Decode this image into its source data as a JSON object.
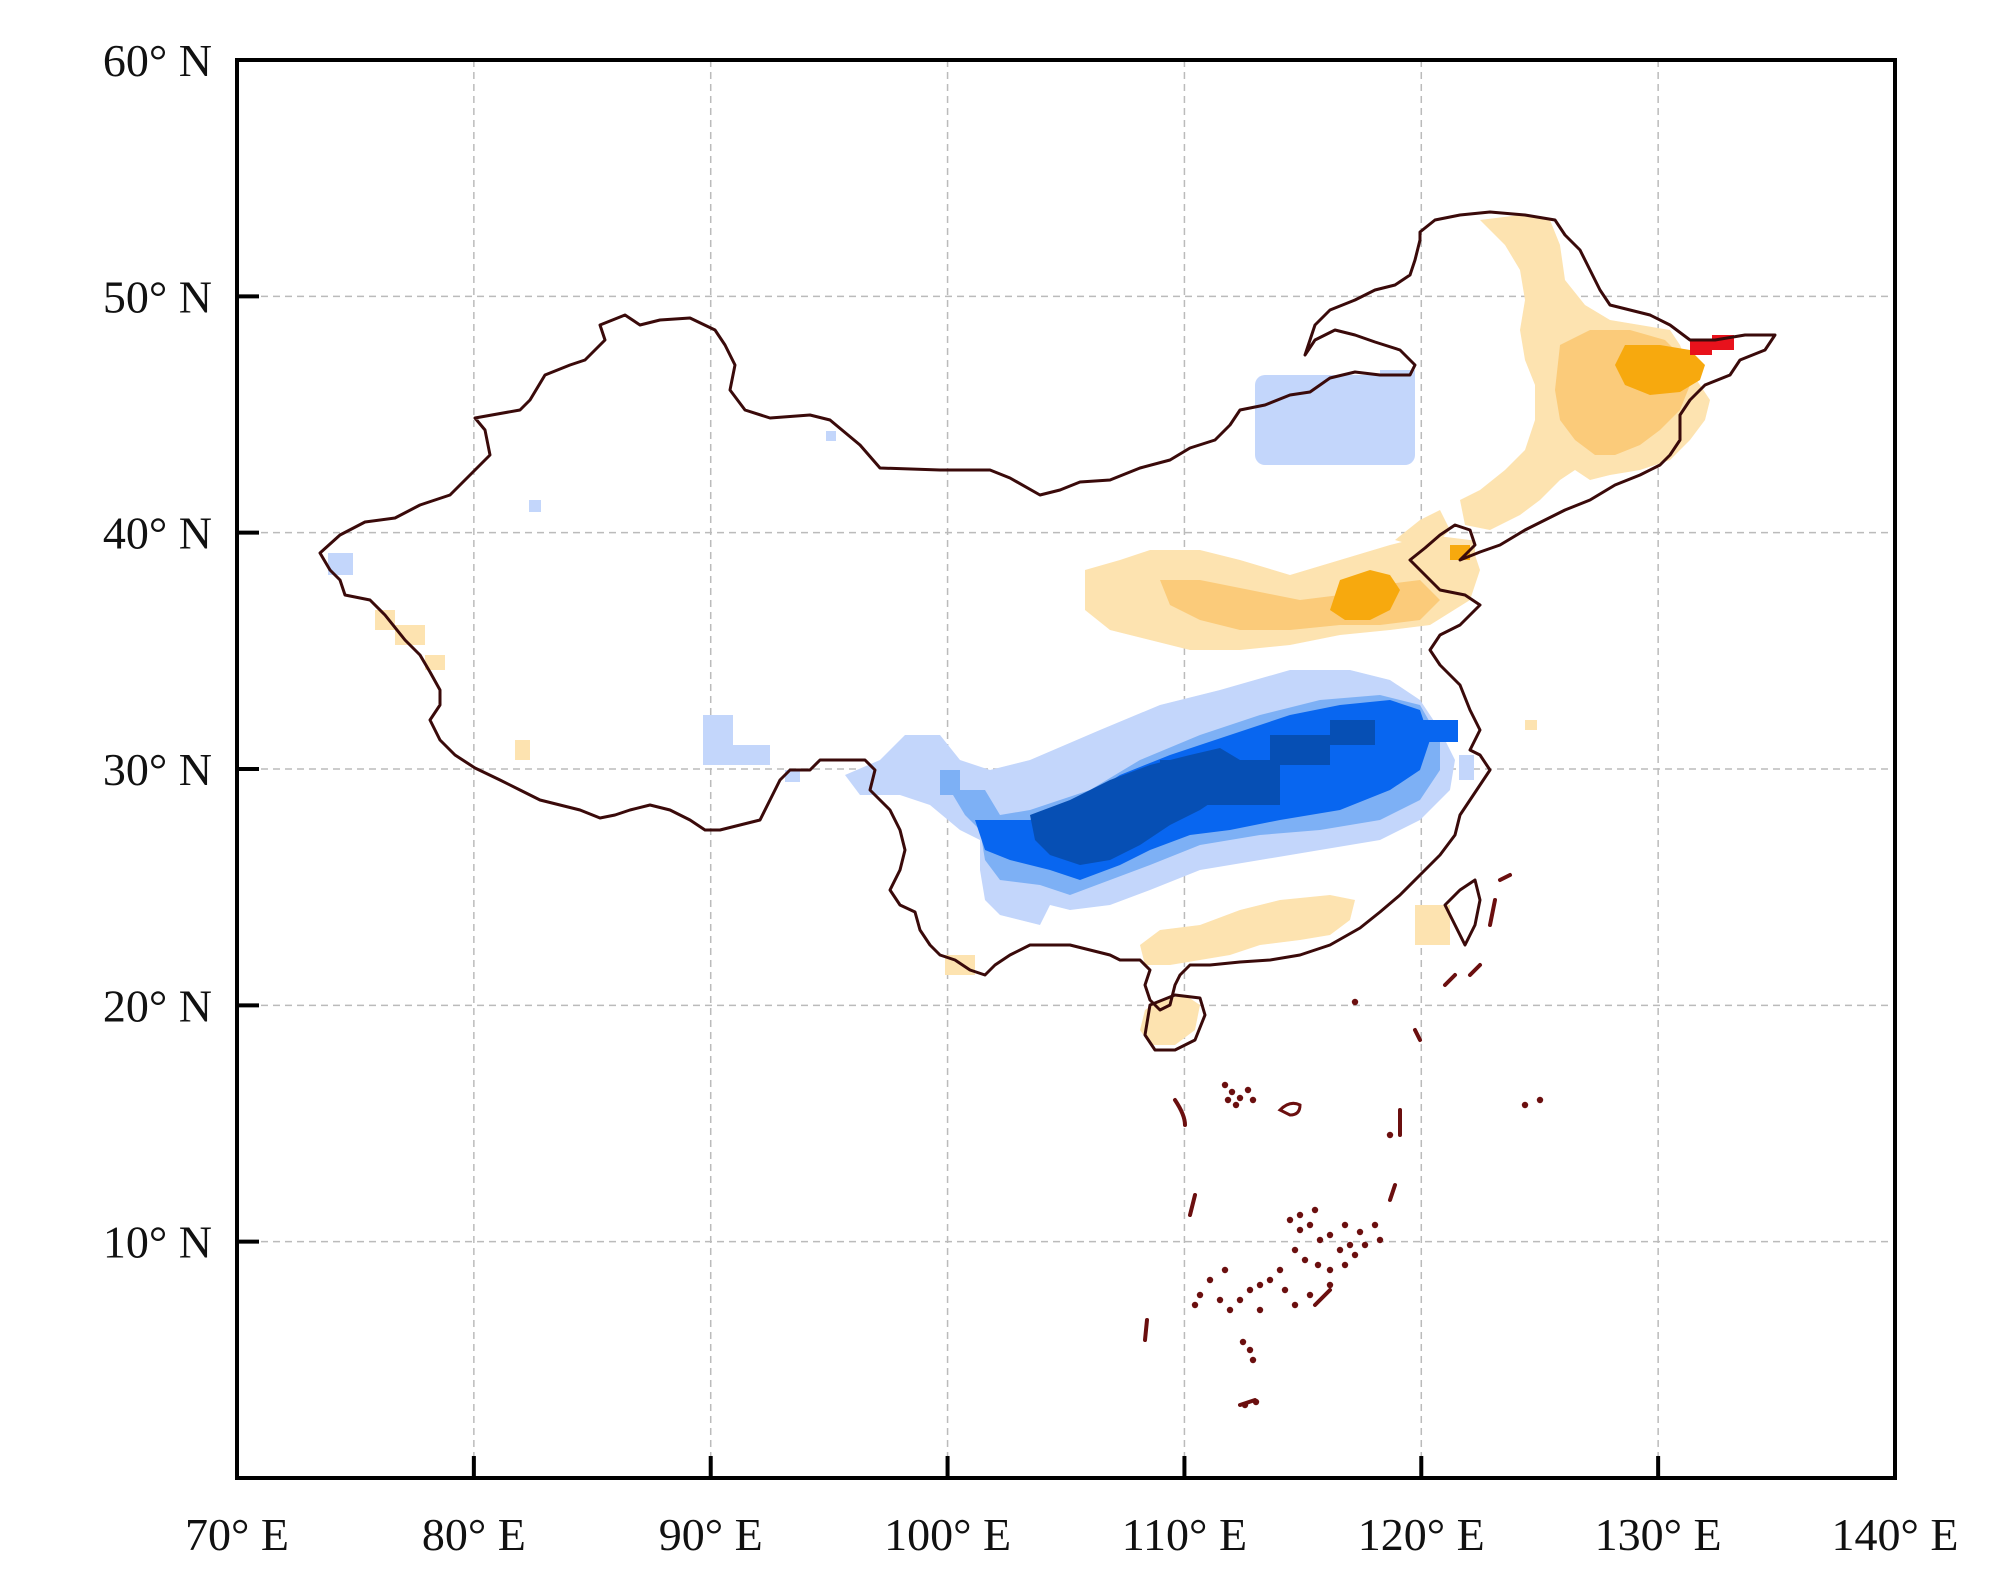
{
  "map": {
    "lon_range": [
      70,
      140
    ],
    "lat_range": [
      0,
      60
    ],
    "x_ticks": [
      {
        "lon": 70,
        "label": "70° E"
      },
      {
        "lon": 80,
        "label": "80° E"
      },
      {
        "lon": 90,
        "label": "90° E"
      },
      {
        "lon": 100,
        "label": "100° E"
      },
      {
        "lon": 110,
        "label": "110° E"
      },
      {
        "lon": 120,
        "label": "120° E"
      },
      {
        "lon": 130,
        "label": "130° E"
      },
      {
        "lon": 140,
        "label": "140° E"
      }
    ],
    "y_ticks": [
      {
        "lat": 10,
        "label": "10° N"
      },
      {
        "lat": 20,
        "label": "20° N"
      },
      {
        "lat": 30,
        "label": "30° N"
      },
      {
        "lat": 40,
        "label": "40° N"
      },
      {
        "lat": 50,
        "label": "50° N"
      },
      {
        "lat": 60,
        "label": "60° N"
      }
    ],
    "grid": true,
    "colors": {
      "frame": "#000000",
      "grid": "#bbbbbb",
      "boundary": "#3a0a0a",
      "islands": "#6b0f0f",
      "neg_light": "#c3d6fb",
      "neg_mid": "#7db0f5",
      "neg_strong": "#0866f0",
      "neg_darkest": "#064fb4",
      "pos_light": "#fde3b0",
      "pos_mid": "#fbcb7a",
      "pos_strong": "#f7a90e",
      "pos_max": "#e8121c"
    }
  }
}
